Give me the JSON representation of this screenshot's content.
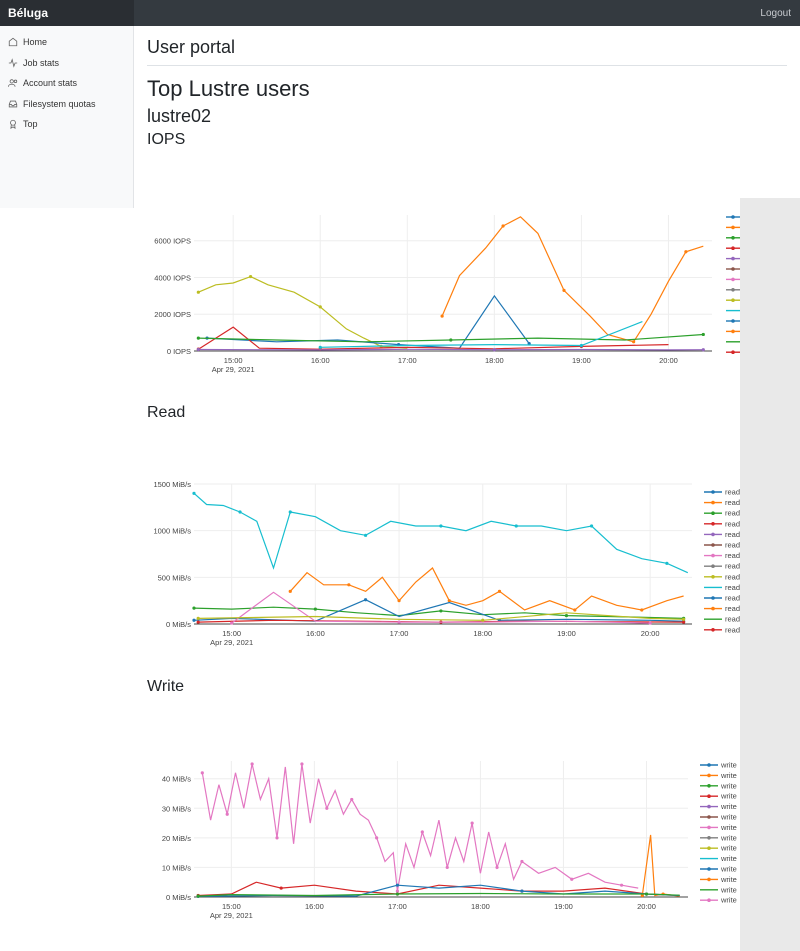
{
  "app": {
    "brand": "Béluga",
    "logout": "Logout"
  },
  "sidebar": {
    "items": [
      {
        "label": "Home",
        "icon": "home-icon"
      },
      {
        "label": "Job stats",
        "icon": "activity-icon"
      },
      {
        "label": "Account stats",
        "icon": "users-icon"
      },
      {
        "label": "Filesystem quotas",
        "icon": "inbox-icon"
      },
      {
        "label": "Top",
        "icon": "award-icon"
      }
    ]
  },
  "page": {
    "portal_title": "User portal",
    "heading": "Top Lustre users",
    "filesystem": "lustre02",
    "section_iops": "IOPS",
    "section_read": "Read",
    "section_write": "Write"
  },
  "chart_data": [
    {
      "type": "line",
      "x_tick_labels": [
        "15:00",
        "16:00",
        "17:00",
        "18:00",
        "19:00",
        "20:00"
      ],
      "x_date_label": "Apr 29, 2021",
      "y_tick_labels": [
        "0 IOPS",
        "2000 IOPS",
        "4000 IOPS",
        "6000 IOPS"
      ],
      "ylim": [
        0,
        7400
      ],
      "legend_labels": [],
      "colors": [
        "#1f77b4",
        "#ff7f0e",
        "#2ca02c",
        "#d62728",
        "#9467bd",
        "#8c564b",
        "#e377c2",
        "#7f7f7f",
        "#bcbd22",
        "#17becf",
        "#1f77b4",
        "#ff7f0e",
        "#2ca02c",
        "#d62728"
      ],
      "series": [
        {
          "x": [
            14.6,
            14.8,
            15.0,
            15.2,
            15.4,
            15.7,
            16.0,
            16.3,
            16.5,
            16.7,
            17.0
          ],
          "y": [
            3200,
            3600,
            3700,
            4050,
            3600,
            3200,
            2400,
            1200,
            700,
            250,
            150
          ],
          "color": "#bcbd22"
        },
        {
          "x": [
            17.4,
            17.6,
            17.9,
            18.1,
            18.3,
            18.5,
            18.8,
            19.1,
            19.3,
            19.6,
            19.8,
            20.0,
            20.2,
            20.4
          ],
          "y": [
            1900,
            4100,
            5600,
            6800,
            7300,
            6400,
            3300,
            1900,
            900,
            500,
            2000,
            3800,
            5400,
            5700
          ],
          "color": "#ff7f0e"
        },
        {
          "x": [
            14.7,
            15.5,
            16.2,
            16.9,
            17.6,
            18.0,
            18.4
          ],
          "y": [
            700,
            500,
            600,
            350,
            150,
            3000,
            400
          ],
          "color": "#1f77b4"
        },
        {
          "x": [
            14.6,
            15.0,
            15.3,
            16.0,
            17.0,
            18.0,
            19.0,
            20.0
          ],
          "y": [
            100,
            1300,
            150,
            100,
            200,
            120,
            250,
            350
          ],
          "color": "#d62728"
        },
        {
          "x": [
            14.6,
            15.5,
            16.5,
            17.5,
            18.5,
            19.5,
            20.4
          ],
          "y": [
            700,
            600,
            500,
            600,
            700,
            600,
            900
          ],
          "color": "#2ca02c"
        },
        {
          "x": [
            14.6,
            16.0,
            17.0,
            18.0,
            19.0,
            20.0,
            20.4
          ],
          "y": [
            80,
            60,
            90,
            70,
            80,
            60,
            70
          ],
          "color": "#9467bd"
        },
        {
          "x": [
            16.0,
            17.0,
            18.0,
            19.0,
            19.7
          ],
          "y": [
            200,
            300,
            350,
            300,
            1600
          ],
          "color": "#17becf"
        }
      ]
    },
    {
      "type": "line",
      "x_tick_labels": [
        "15:00",
        "16:00",
        "17:00",
        "18:00",
        "19:00",
        "20:00"
      ],
      "x_date_label": "Apr 29, 2021",
      "y_tick_labels": [
        "0 MiB/s",
        "500 MiB/s",
        "1000 MiB/s",
        "1500 MiB/s"
      ],
      "ylim": [
        0,
        1500
      ],
      "legend_labels": [
        "read",
        "read",
        "read",
        "read",
        "read",
        "read",
        "read",
        "read",
        "read",
        "read",
        "read",
        "read",
        "read",
        "read"
      ],
      "colors": [
        "#1f77b4",
        "#ff7f0e",
        "#2ca02c",
        "#d62728",
        "#9467bd",
        "#8c564b",
        "#e377c2",
        "#7f7f7f",
        "#bcbd22",
        "#17becf",
        "#1f77b4",
        "#ff7f0e",
        "#2ca02c",
        "#d62728"
      ],
      "series": [
        {
          "x": [
            14.55,
            14.7,
            14.9,
            15.1,
            15.3,
            15.5,
            15.7,
            16.0,
            16.3,
            16.6,
            16.9,
            17.2,
            17.5,
            17.8,
            18.1,
            18.4,
            18.7,
            19.0,
            19.3,
            19.6,
            19.9,
            20.2,
            20.45
          ],
          "y": [
            1400,
            1280,
            1270,
            1200,
            1100,
            600,
            1200,
            1150,
            1000,
            950,
            1100,
            1050,
            1050,
            1000,
            1100,
            1050,
            1050,
            1000,
            1050,
            800,
            700,
            650,
            550
          ],
          "color": "#17becf"
        },
        {
          "x": [
            15.7,
            15.9,
            16.1,
            16.4,
            16.6,
            16.8,
            17.0,
            17.2,
            17.4,
            17.6,
            17.8,
            18.0,
            18.2,
            18.5,
            18.8,
            19.1,
            19.3,
            19.6,
            19.9,
            20.2,
            20.4
          ],
          "y": [
            350,
            550,
            420,
            420,
            350,
            500,
            250,
            450,
            600,
            250,
            200,
            250,
            350,
            150,
            250,
            150,
            300,
            200,
            150,
            250,
            300
          ],
          "color": "#ff7f0e"
        },
        {
          "x": [
            14.55,
            15.0,
            15.5,
            16.0,
            16.5,
            17.0,
            17.5,
            18.0,
            18.5,
            19.0,
            19.5,
            20.0,
            20.4
          ],
          "y": [
            170,
            160,
            180,
            160,
            120,
            90,
            140,
            100,
            120,
            90,
            80,
            70,
            60
          ],
          "color": "#2ca02c"
        },
        {
          "x": [
            14.55,
            15.0,
            16.0,
            16.6,
            17.0,
            17.6,
            18.2,
            19.0,
            20.0,
            20.4
          ],
          "y": [
            40,
            60,
            30,
            260,
            80,
            230,
            40,
            50,
            40,
            30
          ],
          "color": "#1f77b4"
        },
        {
          "x": [
            14.6,
            15.5,
            16.5,
            17.5,
            18.5,
            19.5,
            20.4
          ],
          "y": [
            20,
            40,
            30,
            20,
            30,
            25,
            20
          ],
          "color": "#d62728"
        },
        {
          "x": [
            15.0,
            15.5,
            16.0,
            17.0,
            18.0,
            19.0,
            20.0
          ],
          "y": [
            10,
            340,
            30,
            20,
            20,
            30,
            10
          ],
          "color": "#e377c2"
        },
        {
          "x": [
            14.6,
            16.0,
            17.0,
            18.0,
            19.0,
            20.0,
            20.4
          ],
          "y": [
            60,
            80,
            50,
            40,
            120,
            60,
            50
          ],
          "color": "#bcbd22"
        }
      ]
    },
    {
      "type": "line",
      "x_tick_labels": [
        "15:00",
        "16:00",
        "17:00",
        "18:00",
        "19:00",
        "20:00"
      ],
      "x_date_label": "Apr 29, 2021",
      "y_tick_labels": [
        "0 MiB/s",
        "10 MiB/s",
        "20 MiB/s",
        "30 MiB/s",
        "40 MiB/s"
      ],
      "ylim": [
        0,
        46
      ],
      "legend_labels": [
        "write",
        "write",
        "write",
        "write",
        "write",
        "write",
        "write",
        "write",
        "write",
        "write",
        "write",
        "write",
        "write",
        "write"
      ],
      "colors": [
        "#1f77b4",
        "#ff7f0e",
        "#2ca02c",
        "#d62728",
        "#9467bd",
        "#8c564b",
        "#e377c2",
        "#7f7f7f",
        "#bcbd22",
        "#17becf",
        "#1f77b4",
        "#ff7f0e",
        "#2ca02c",
        "#e377c2"
      ],
      "series": [
        {
          "x": [
            14.65,
            14.75,
            14.85,
            14.95,
            15.05,
            15.15,
            15.25,
            15.35,
            15.45,
            15.55,
            15.65,
            15.75,
            15.85,
            15.95,
            16.05,
            16.15,
            16.25,
            16.35,
            16.45,
            16.55,
            16.65,
            16.75,
            16.85,
            16.95,
            17.0,
            17.1,
            17.2,
            17.3,
            17.4,
            17.5,
            17.6,
            17.7,
            17.8,
            17.9,
            18.0,
            18.1,
            18.2,
            18.3,
            18.4,
            18.5,
            18.7,
            18.9,
            19.1,
            19.3,
            19.5,
            19.7,
            19.9
          ],
          "y": [
            42,
            26,
            38,
            28,
            42,
            30,
            45,
            33,
            40,
            20,
            44,
            18,
            45,
            25,
            40,
            30,
            36,
            28,
            33,
            28,
            26,
            20,
            12,
            15,
            2,
            18,
            10,
            22,
            14,
            26,
            10,
            20,
            12,
            25,
            8,
            22,
            10,
            18,
            6,
            12,
            8,
            10,
            6,
            8,
            5,
            4,
            3
          ],
          "color": "#e377c2"
        },
        {
          "x": [
            14.6,
            15.0,
            15.3,
            15.6,
            16.0,
            16.5,
            17.0,
            17.5,
            18.0,
            18.5,
            19.0,
            19.5,
            20.0,
            20.4
          ],
          "y": [
            0.5,
            1,
            5,
            3,
            4,
            2,
            1,
            4,
            3,
            2,
            2,
            3,
            1,
            0.5
          ],
          "color": "#d62728"
        },
        {
          "x": [
            19.95,
            20.05,
            20.1,
            20.2,
            20.4
          ],
          "y": [
            0.5,
            21,
            0.5,
            1,
            0.3
          ],
          "color": "#ff7f0e"
        },
        {
          "x": [
            14.6,
            15.5,
            16.5,
            17.0,
            17.5,
            18.0,
            18.5,
            19.0,
            19.5,
            20.0,
            20.4
          ],
          "y": [
            0.2,
            0.5,
            0.3,
            4,
            3,
            4,
            2,
            1,
            2,
            1,
            0.5
          ],
          "color": "#1f77b4"
        },
        {
          "x": [
            14.6,
            15.0,
            16.0,
            17.0,
            18.0,
            19.0,
            20.0,
            20.4
          ],
          "y": [
            0.3,
            0.8,
            0.5,
            1,
            1.2,
            1,
            1,
            0.6
          ],
          "color": "#2ca02c"
        }
      ]
    }
  ]
}
